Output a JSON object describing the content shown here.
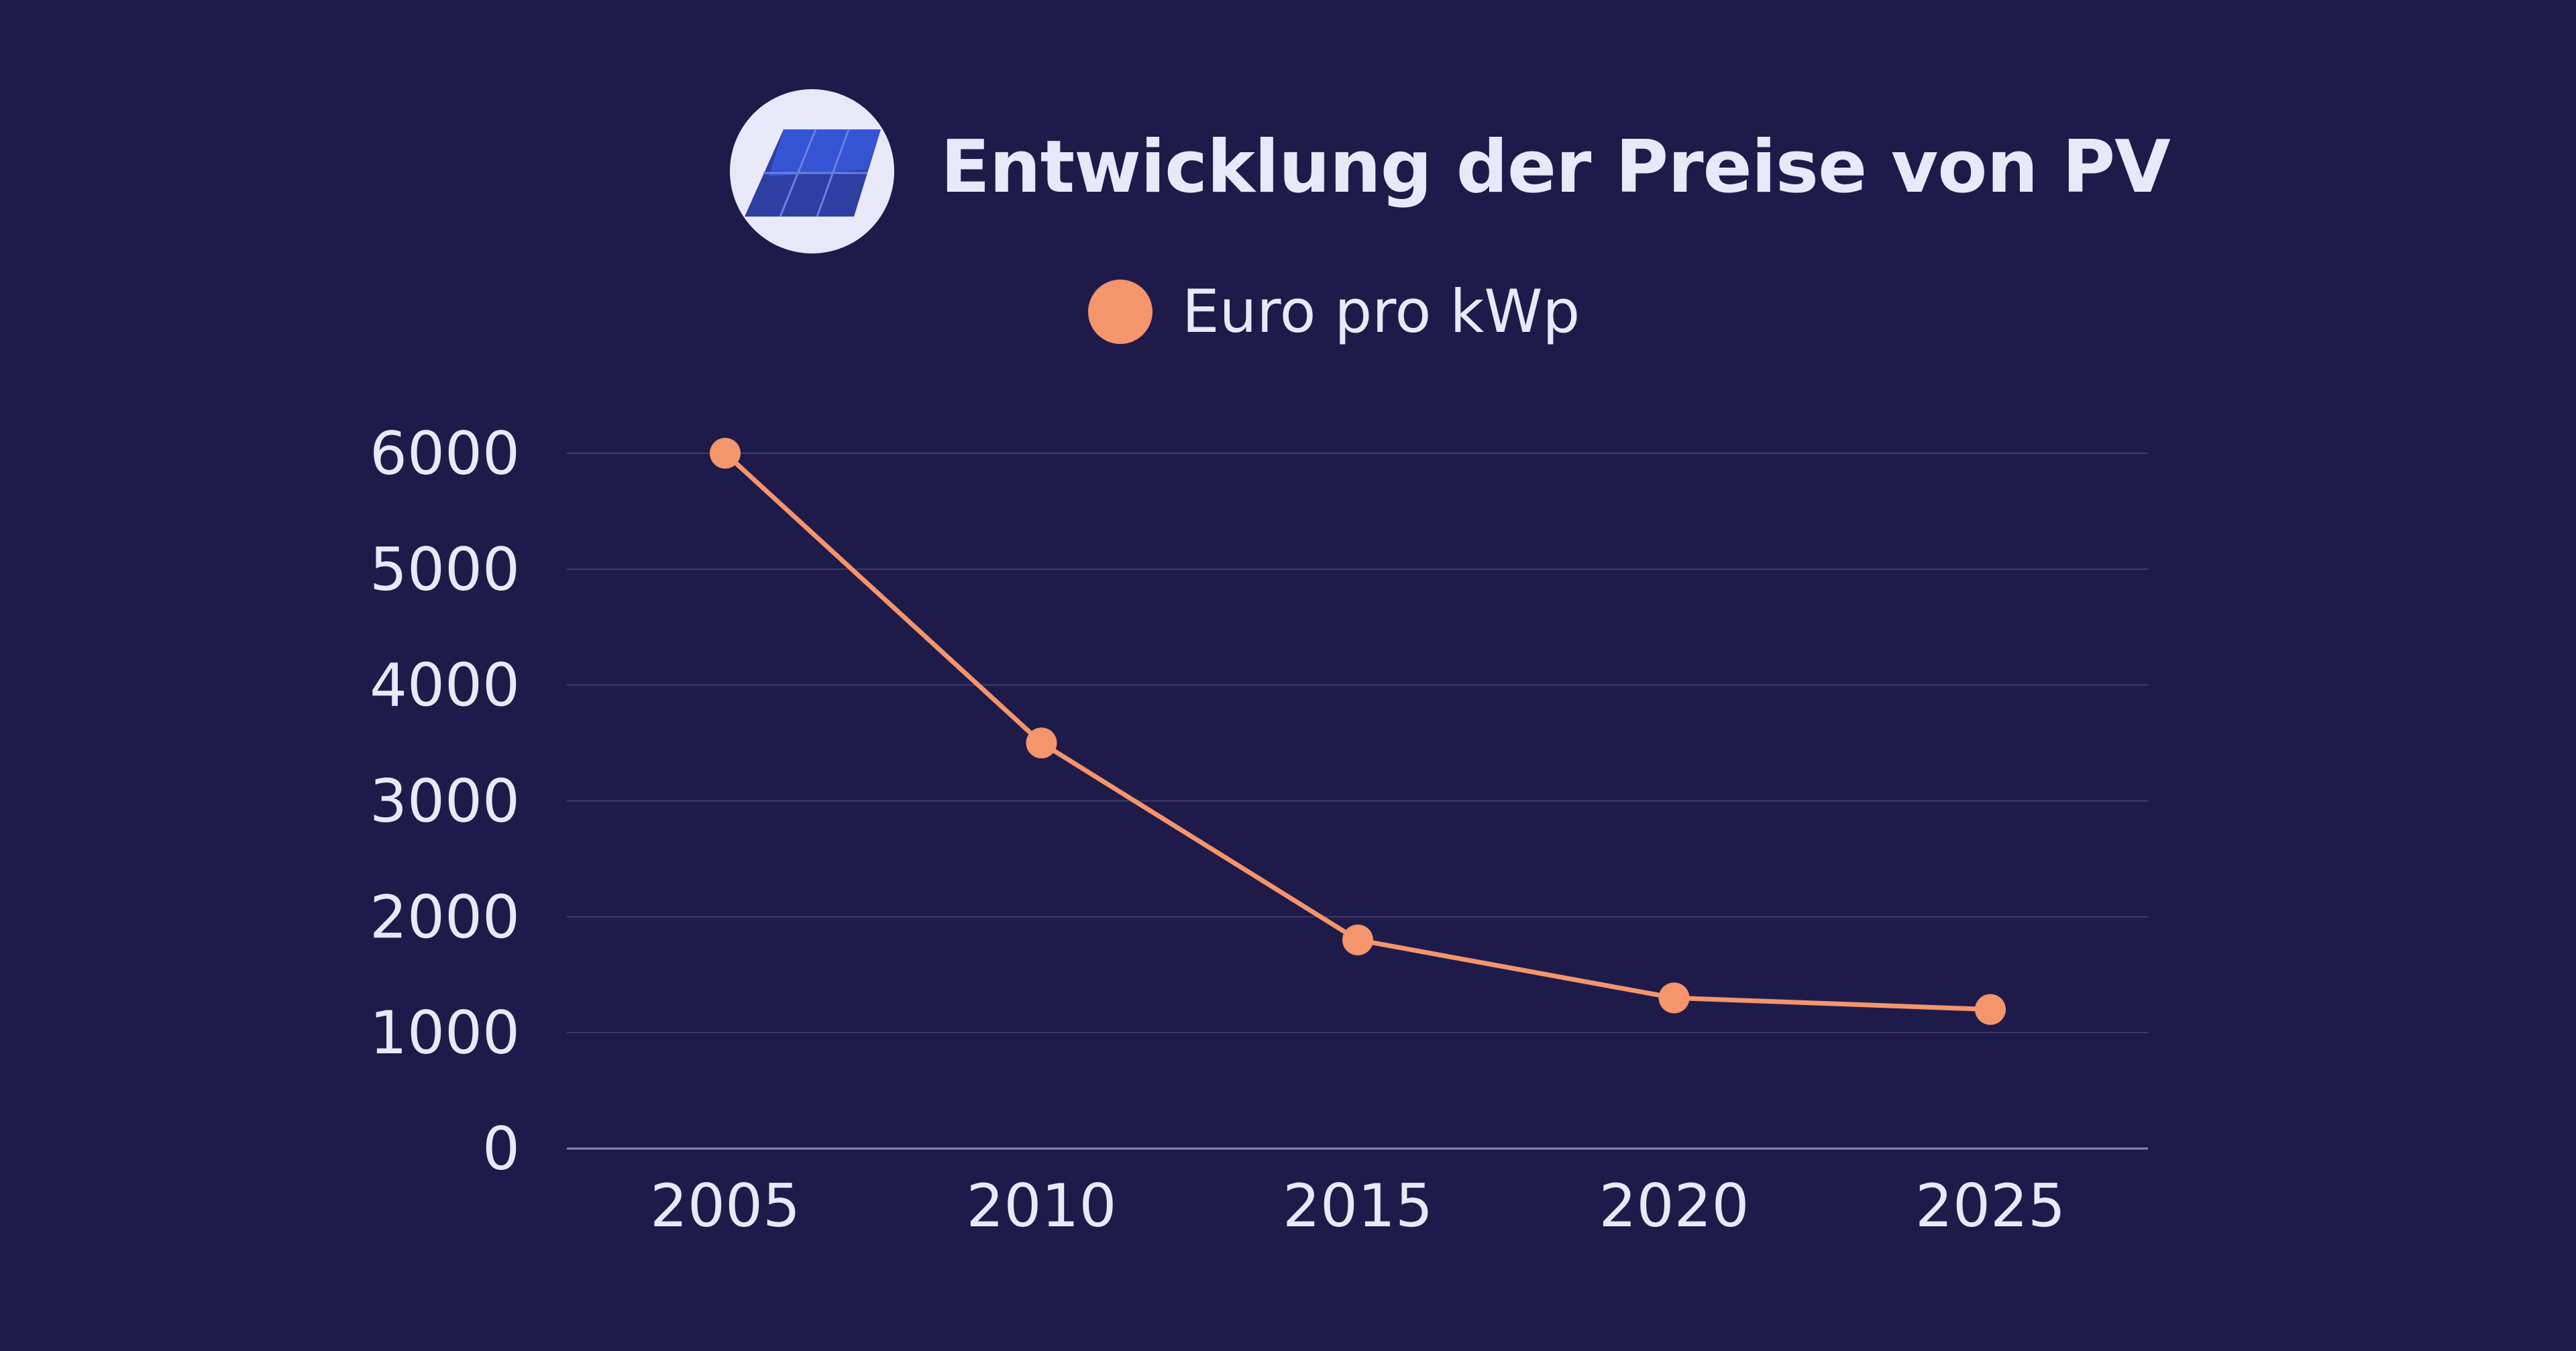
{
  "colors": {
    "background": "#1e1b4b",
    "text": "#e9e8f8",
    "series": "#f4956b",
    "grid": "#3e3b6e",
    "axis": "#8a88b0"
  },
  "logo_icon": "solar-panel-icon",
  "chart_data": {
    "type": "line",
    "title": "Entwicklung der Preise von PV",
    "xlabel": "",
    "ylabel": "",
    "categories": [
      "2005",
      "2010",
      "2015",
      "2020",
      "2025"
    ],
    "series": [
      {
        "name": "Euro pro kWp",
        "values": [
          6000,
          3500,
          1800,
          1300,
          1200
        ]
      }
    ],
    "yticks": [
      "0",
      "1000",
      "2000",
      "3000",
      "4000",
      "5000",
      "6000"
    ],
    "ylim": [
      0,
      6000
    ],
    "grid": true,
    "legend_position": "top-center"
  }
}
